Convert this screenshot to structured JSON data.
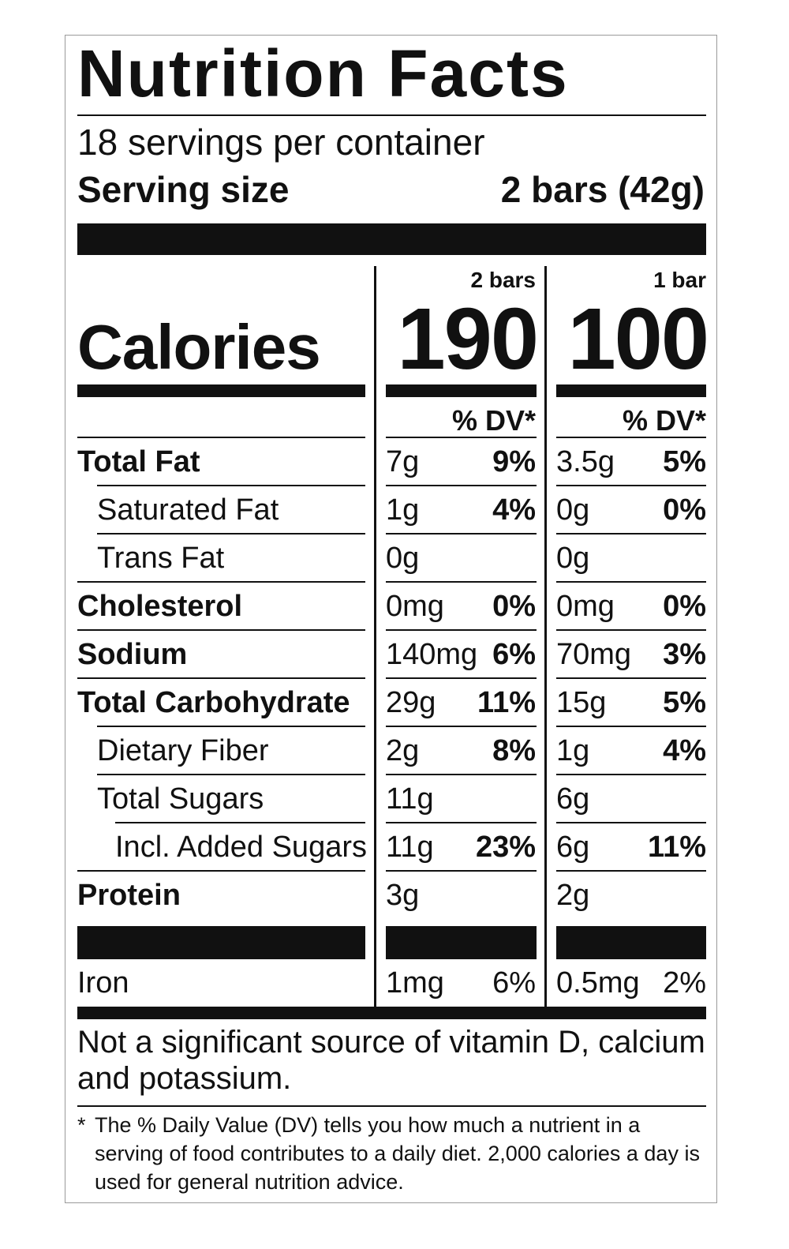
{
  "title": "Nutrition Facts",
  "servings_per_container": "18 servings per container",
  "serving_size": {
    "label": "Serving size",
    "value": "2 bars (42g)"
  },
  "columns": [
    {
      "header": "2 bars",
      "calories": "190",
      "dv_header": "% DV*"
    },
    {
      "header": "1 bar",
      "calories": "100",
      "dv_header": "% DV*"
    }
  ],
  "calories_label": "Calories",
  "rows": [
    {
      "label": "Total Fat",
      "bold": true,
      "indent": 0,
      "c1_amt": "7g",
      "c1_dv": "9%",
      "c2_amt": "3.5g",
      "c2_dv": "5%"
    },
    {
      "label": "Saturated Fat",
      "bold": false,
      "indent": 1,
      "c1_amt": "1g",
      "c1_dv": "4%",
      "c2_amt": "0g",
      "c2_dv": "0%"
    },
    {
      "label": "Trans Fat",
      "bold": false,
      "indent": 1,
      "c1_amt": "0g",
      "c1_dv": "",
      "c2_amt": "0g",
      "c2_dv": ""
    },
    {
      "label": "Cholesterol",
      "bold": true,
      "indent": 0,
      "c1_amt": "0mg",
      "c1_dv": "0%",
      "c2_amt": "0mg",
      "c2_dv": "0%"
    },
    {
      "label": "Sodium",
      "bold": true,
      "indent": 0,
      "c1_amt": "140mg",
      "c1_dv": "6%",
      "c2_amt": "70mg",
      "c2_dv": "3%"
    },
    {
      "label": "Total Carbohydrate",
      "bold": true,
      "indent": 0,
      "c1_amt": "29g",
      "c1_dv": "11%",
      "c2_amt": "15g",
      "c2_dv": "5%"
    },
    {
      "label": "Dietary Fiber",
      "bold": false,
      "indent": 1,
      "c1_amt": "2g",
      "c1_dv": "8%",
      "c2_amt": "1g",
      "c2_dv": "4%"
    },
    {
      "label": "Total Sugars",
      "bold": false,
      "indent": 1,
      "c1_amt": "11g",
      "c1_dv": "",
      "c2_amt": "6g",
      "c2_dv": ""
    },
    {
      "label": "Incl. Added Sugars",
      "bold": false,
      "indent": 2,
      "c1_amt": "11g",
      "c1_dv": "23%",
      "c2_amt": "6g",
      "c2_dv": "11%"
    },
    {
      "label": "Protein",
      "bold": true,
      "indent": 0,
      "c1_amt": "3g",
      "c1_dv": "",
      "c2_amt": "2g",
      "c2_dv": ""
    }
  ],
  "iron": {
    "label": "Iron",
    "c1_amt": "1mg",
    "c1_dv": "6%",
    "c2_amt": "0.5mg",
    "c2_dv": "2%"
  },
  "footer_note": "Not a significant source of vitamin D, calcium and potassium.",
  "footnote_mark": "*",
  "footnote": "The % Daily Value (DV) tells you how much a nutrient in a serving of food contributes to a daily diet. 2,000 calories a day is used for general nutrition advice."
}
